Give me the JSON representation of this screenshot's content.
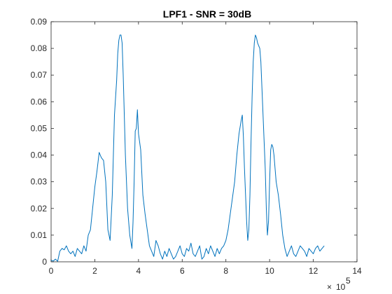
{
  "chart_data": {
    "type": "line",
    "title": "LPF1 - SNR = 30dB",
    "xlabel": "",
    "ylabel": "",
    "xlim": [
      0,
      1400000
    ],
    "ylim": [
      0,
      0.09
    ],
    "x_exponent_base": "10",
    "x_exponent_power": "5",
    "x_ticks": [
      {
        "value": 0,
        "label": "0"
      },
      {
        "value": 200000,
        "label": "2"
      },
      {
        "value": 400000,
        "label": "4"
      },
      {
        "value": 600000,
        "label": "6"
      },
      {
        "value": 800000,
        "label": "8"
      },
      {
        "value": 1000000,
        "label": "10"
      },
      {
        "value": 1200000,
        "label": "12"
      },
      {
        "value": 1400000,
        "label": "14"
      }
    ],
    "y_ticks": [
      {
        "value": 0,
        "label": "0"
      },
      {
        "value": 0.01,
        "label": "0.01"
      },
      {
        "value": 0.02,
        "label": "0.02"
      },
      {
        "value": 0.03,
        "label": "0.03"
      },
      {
        "value": 0.04,
        "label": "0.04"
      },
      {
        "value": 0.05,
        "label": "0.05"
      },
      {
        "value": 0.06,
        "label": "0.06"
      },
      {
        "value": 0.07,
        "label": "0.07"
      },
      {
        "value": 0.08,
        "label": "0.08"
      },
      {
        "value": 0.09,
        "label": "0.09"
      }
    ],
    "grid": false,
    "box": true,
    "line_color": "#0072BD",
    "series": [
      {
        "x": [
          0,
          10000,
          20000,
          30000,
          40000,
          50000,
          60000,
          70000,
          80000,
          90000,
          100000,
          110000,
          120000,
          130000,
          140000,
          150000,
          160000,
          170000,
          180000,
          190000,
          200000,
          210000,
          220000,
          230000,
          240000,
          250000,
          260000,
          270000,
          280000,
          290000,
          300000,
          305000,
          310000,
          315000,
          320000,
          325000,
          330000,
          335000,
          340000,
          350000,
          360000,
          370000,
          375000,
          380000,
          385000,
          390000,
          395000,
          400000,
          405000,
          410000,
          420000,
          430000,
          440000,
          450000,
          460000,
          470000,
          480000,
          490000,
          500000,
          510000,
          520000,
          530000,
          540000,
          550000,
          560000,
          570000,
          580000,
          590000,
          600000,
          610000,
          620000,
          630000,
          640000,
          650000,
          660000,
          670000,
          680000,
          690000,
          700000,
          710000,
          720000,
          730000,
          740000,
          750000,
          760000,
          770000,
          780000,
          790000,
          800000,
          810000,
          820000,
          830000,
          840000,
          850000,
          860000,
          870000,
          875000,
          880000,
          885000,
          890000,
          895000,
          900000,
          905000,
          910000,
          915000,
          920000,
          925000,
          930000,
          935000,
          940000,
          945000,
          950000,
          955000,
          960000,
          965000,
          970000,
          975000,
          980000,
          985000,
          990000,
          995000,
          1000000,
          1005000,
          1010000,
          1015000,
          1020000,
          1025000,
          1030000,
          1040000,
          1050000,
          1060000,
          1070000,
          1080000,
          1090000,
          1100000,
          1110000,
          1120000,
          1130000,
          1140000,
          1150000,
          1160000,
          1170000,
          1180000,
          1190000,
          1200000,
          1210000,
          1220000,
          1230000,
          1240000,
          1250000
        ],
        "y": [
          0.0005,
          0.0003,
          0.001,
          0.0002,
          0.004,
          0.005,
          0.0045,
          0.006,
          0.004,
          0.003,
          0.004,
          0.002,
          0.005,
          0.004,
          0.003,
          0.006,
          0.004,
          0.01,
          0.012,
          0.02,
          0.028,
          0.034,
          0.041,
          0.039,
          0.038,
          0.03,
          0.012,
          0.008,
          0.025,
          0.055,
          0.068,
          0.078,
          0.083,
          0.085,
          0.085,
          0.082,
          0.07,
          0.055,
          0.04,
          0.02,
          0.01,
          0.005,
          0.015,
          0.03,
          0.049,
          0.05,
          0.057,
          0.048,
          0.045,
          0.042,
          0.025,
          0.018,
          0.012,
          0.006,
          0.004,
          0.002,
          0.008,
          0.006,
          0.003,
          0.001,
          0.004,
          0.002,
          0.005,
          0.003,
          0.001,
          0.002,
          0.004,
          0.006,
          0.003,
          0.002,
          0.005,
          0.004,
          0.007,
          0.003,
          0.002,
          0.004,
          0.006,
          0.001,
          0.002,
          0.005,
          0.003,
          0.006,
          0.004,
          0.002,
          0.005,
          0.003,
          0.005,
          0.006,
          0.008,
          0.012,
          0.018,
          0.024,
          0.03,
          0.04,
          0.048,
          0.053,
          0.055,
          0.047,
          0.035,
          0.025,
          0.015,
          0.008,
          0.012,
          0.025,
          0.045,
          0.062,
          0.075,
          0.082,
          0.085,
          0.084,
          0.082,
          0.081,
          0.08,
          0.075,
          0.065,
          0.055,
          0.045,
          0.035,
          0.02,
          0.01,
          0.015,
          0.03,
          0.042,
          0.044,
          0.043,
          0.04,
          0.035,
          0.03,
          0.025,
          0.018,
          0.01,
          0.005,
          0.002,
          0.004,
          0.006,
          0.003,
          0.002,
          0.004,
          0.006,
          0.005,
          0.004,
          0.002,
          0.005,
          0.004,
          0.003,
          0.005,
          0.006,
          0.004,
          0.005,
          0.006
        ]
      }
    ]
  }
}
